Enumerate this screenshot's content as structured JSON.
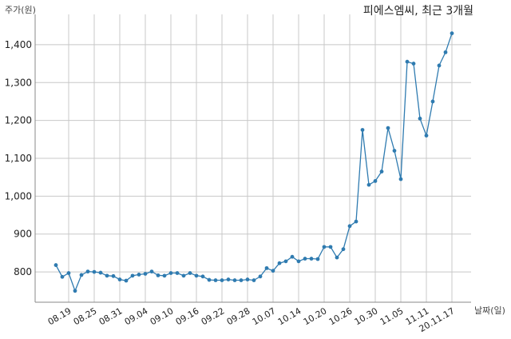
{
  "chart_data": {
    "type": "line",
    "title": "피에스엠씨, 최근 3개월",
    "ylabel": "주가(원)",
    "xlabel": "날짜(일)",
    "ylim": [
      720,
      1480
    ],
    "yticks": [
      800,
      900,
      1000,
      1100,
      1200,
      1300,
      1400
    ],
    "ytick_labels": [
      "800",
      "900",
      "1,000",
      "1,100",
      "1,200",
      "1,300",
      "1,400"
    ],
    "xtick_labels": [
      "08.19",
      "08.25",
      "08.31",
      "09.04",
      "09.10",
      "09.16",
      "09.22",
      "09.28",
      "10.07",
      "10.14",
      "10.20",
      "10.26",
      "10.30",
      "11.05",
      "11.11",
      "20.11.17"
    ],
    "xtick_index": [
      2,
      6,
      10,
      14,
      18,
      22,
      26,
      30,
      34,
      38,
      42,
      46,
      50,
      54,
      58,
      62
    ],
    "grid": true,
    "color": "#2f7bb0",
    "series": [
      {
        "values": [
          818,
          787,
          797,
          750,
          792,
          801,
          800,
          798,
          790,
          789,
          780,
          777,
          790,
          793,
          795,
          801,
          791,
          790,
          797,
          797,
          790,
          797,
          790,
          788,
          779,
          778,
          778,
          780,
          778,
          778,
          780,
          778,
          788,
          810,
          803,
          823,
          828,
          840,
          828,
          835,
          835,
          834,
          866,
          866,
          838,
          860,
          921,
          933,
          1175,
          1030,
          1040,
          1065,
          1180,
          1120,
          1045,
          1355,
          1350,
          1205,
          1160,
          1250,
          1345,
          1380,
          1430
        ]
      }
    ]
  }
}
